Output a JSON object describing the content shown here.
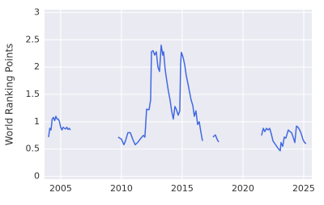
{
  "chart_data": {
    "type": "line",
    "y_label": "World Ranking Points",
    "x": [
      2004.0,
      2004.1,
      2004.2,
      2004.3,
      2004.4,
      2004.5,
      2004.6,
      2004.7,
      2004.8,
      2004.9,
      2005.0,
      2005.1,
      2005.2,
      2005.3,
      2005.4,
      2005.5,
      2005.6,
      2005.7,
      2005.8,
      2007.0,
      2009.73,
      2010.0,
      2010.2,
      2010.33,
      2010.53,
      2010.73,
      2010.93,
      2011.13,
      2011.33,
      2011.6,
      2011.8,
      2011.93,
      2012.07,
      2012.27,
      2012.4,
      2012.47,
      2012.6,
      2012.73,
      2012.87,
      2013.0,
      2013.13,
      2013.27,
      2013.4,
      2013.47,
      2013.6,
      2013.73,
      2013.87,
      2014.0,
      2014.13,
      2014.27,
      2014.4,
      2014.53,
      2014.67,
      2014.8,
      2014.87,
      2014.93,
      2015.07,
      2015.2,
      2015.33,
      2015.47,
      2015.6,
      2015.73,
      2015.87,
      2016.0,
      2016.13,
      2016.27,
      2016.4,
      2016.53,
      2016.67,
      2017.1,
      2017.53,
      2017.73,
      2017.87,
      2018.0,
      2020.0,
      2021.53,
      2021.67,
      2021.8,
      2021.93,
      2022.07,
      2022.2,
      2022.33,
      2022.47,
      2022.93,
      2023.07,
      2023.13,
      2023.27,
      2023.4,
      2023.53,
      2023.73,
      2023.87,
      2024.0,
      2024.13,
      2024.27,
      2024.4,
      2024.53,
      2024.67,
      2024.8,
      2024.93,
      2025.07,
      2025.2
    ],
    "series": [
      {
        "color": "#4169e1",
        "values": [
          0.72,
          0.88,
          0.85,
          1.05,
          1.08,
          1.02,
          1.1,
          1.05,
          1.05,
          1.0,
          0.9,
          0.85,
          0.9,
          0.88,
          0.87,
          0.9,
          0.86,
          0.88,
          0.85,
          null,
          0.72,
          0.68,
          0.58,
          0.65,
          0.8,
          0.8,
          0.68,
          0.58,
          0.62,
          0.7,
          0.75,
          0.72,
          1.23,
          1.22,
          1.4,
          2.28,
          2.3,
          2.22,
          2.28,
          2.0,
          1.92,
          2.4,
          2.22,
          2.28,
          1.95,
          1.75,
          1.55,
          1.4,
          1.2,
          1.05,
          1.28,
          1.22,
          1.12,
          1.2,
          2.05,
          2.27,
          2.18,
          2.05,
          1.85,
          1.7,
          1.55,
          1.4,
          1.3,
          1.1,
          1.2,
          0.95,
          1.0,
          0.82,
          0.65,
          null,
          0.72,
          0.76,
          0.68,
          0.63,
          null,
          0.75,
          0.88,
          0.82,
          0.88,
          0.85,
          0.88,
          0.78,
          0.65,
          0.5,
          0.47,
          0.62,
          0.55,
          0.72,
          0.7,
          0.85,
          0.82,
          0.8,
          0.72,
          0.62,
          0.92,
          0.9,
          0.85,
          0.78,
          0.68,
          0.62,
          0.6
        ]
      }
    ],
    "xlim": [
      2003.67,
      2025.67
    ],
    "ylim": [
      -0.05,
      3.05
    ],
    "xticks": [
      2005,
      2010,
      2015,
      2020,
      2025
    ],
    "yticks": [
      0,
      0.5,
      1,
      1.5,
      2,
      2.5,
      3
    ],
    "grid": true
  }
}
